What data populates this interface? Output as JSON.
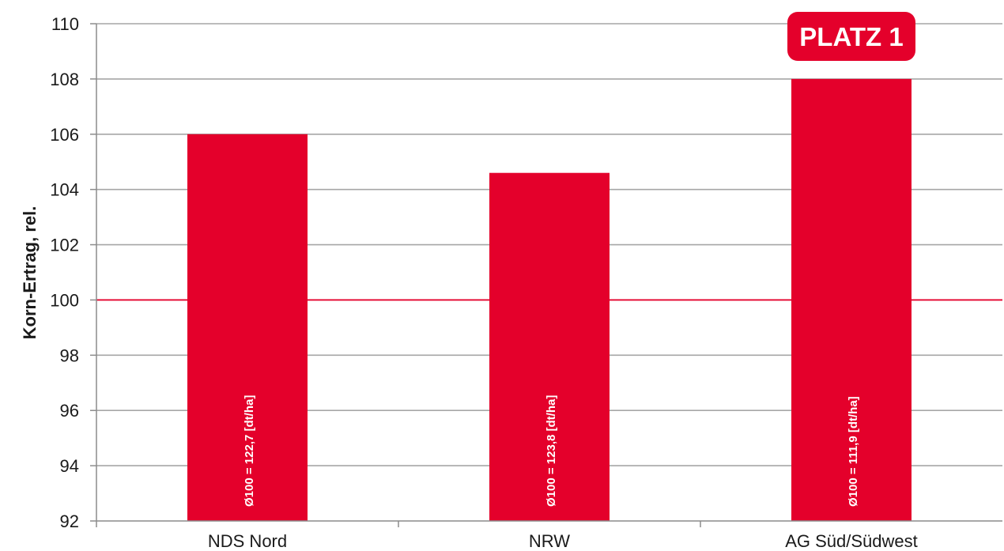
{
  "chart_data": {
    "type": "bar",
    "categories": [
      "NDS Nord",
      "NRW",
      "AG Süd/Südwest"
    ],
    "values": [
      106.0,
      104.6,
      108.0
    ],
    "bar_labels": [
      "Ø100 = 122,7 [dt/ha]",
      "Ø100 = 123,8 [dt/ha]",
      "Ø100 = 111,9 [dt/ha]"
    ],
    "ylabel": "Korn-Ertrag, rel.",
    "xlabel": "",
    "ylim": [
      92,
      110
    ],
    "yticks": [
      92,
      94,
      96,
      98,
      100,
      102,
      104,
      106,
      108,
      110
    ],
    "reference_line": 100,
    "grid": true,
    "annotation": {
      "text": "PLATZ 1",
      "category": "AG Süd/Südwest"
    },
    "colors": {
      "bar": "#e4002b",
      "reference_line": "#e4002b",
      "grid": "#a6a6a6",
      "axis": "#8c8c8c"
    }
  }
}
